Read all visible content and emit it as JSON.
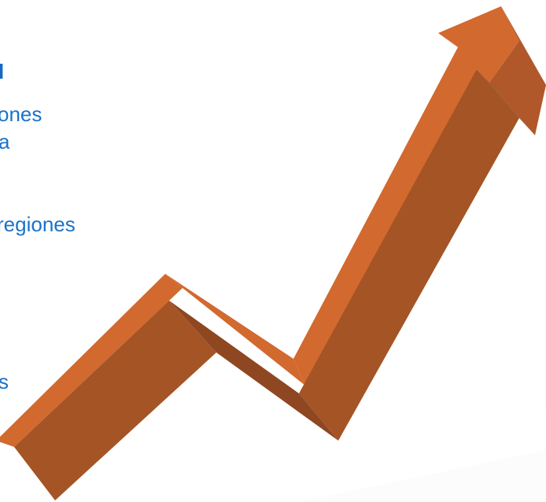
{
  "slide": {
    "text_fragments": {
      "heading": "l",
      "line1": "ones",
      "line2": "a",
      "line3": "regiones",
      "line4": "s"
    }
  },
  "arrow_graphic": {
    "icon": "trend-up-arrow-icon",
    "colors": {
      "face_light": "#D2692E",
      "face_dark": "#A45425",
      "face_darker": "#8E4720",
      "tip_side": "#B0582A"
    }
  },
  "text_color": "#1A73C8"
}
